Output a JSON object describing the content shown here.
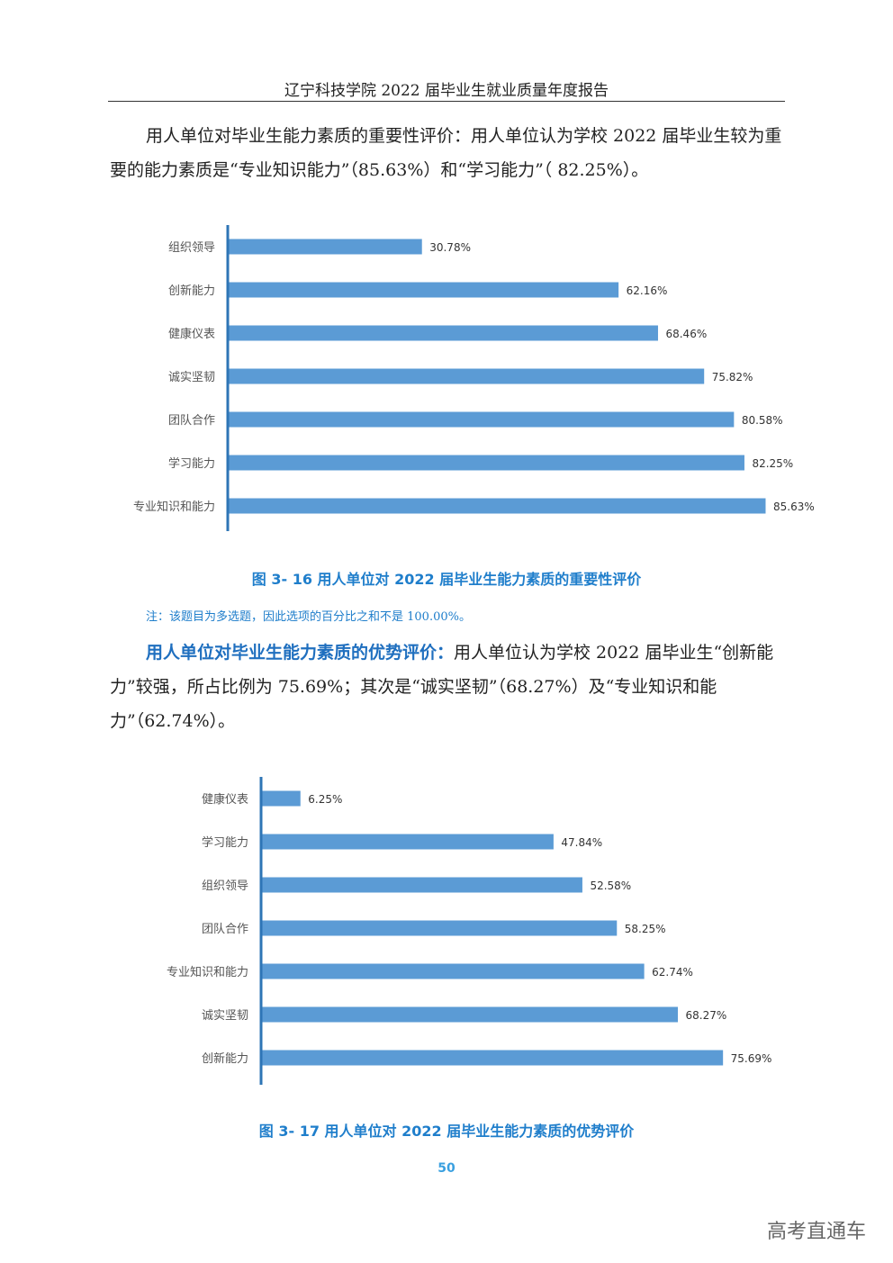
{
  "header": {
    "title": "辽宁科技学院 2022 届毕业生就业质量年度报告"
  },
  "para1": {
    "text": "用人单位对毕业生能力素质的重要性评价：用人单位认为学校 2022 届毕业生较为重要的能力素质是“专业知识能力”（85.63%）和“学习能力”（ 82.25%）。"
  },
  "fig1": {
    "caption": "图 3- 16 用人单位对 2022 届毕业生能力素质的重要性评价",
    "note": "注：该题目为多选题，因此选项的百分比之和不是 100.00%。"
  },
  "para2": {
    "lead": "用人单位对毕业生能力素质的优势评价：",
    "text": "用人单位认为学校 2022 届毕业生“创新能力”较强，所占比例为 75.69%；其次是“诚实坚韧”（68.27%）及“专业知识和能力”（62.74%）。"
  },
  "fig2": {
    "caption": "图 3- 17 用人单位对 2022 届毕业生能力素质的优势评价"
  },
  "page_number": "50",
  "watermark": "高考直通车",
  "colors": {
    "bar": "#5b9bd5",
    "axis": "#2e75b6",
    "caption": "#1f7ecb"
  },
  "chart_data": [
    {
      "type": "bar",
      "orientation": "horizontal",
      "categories": [
        "组织领导",
        "创新能力",
        "健康仪表",
        "诚实坚韧",
        "团队合作",
        "学习能力",
        "专业知识和能力"
      ],
      "values": [
        30.78,
        62.16,
        68.46,
        75.82,
        80.58,
        82.25,
        85.63
      ],
      "value_labels": [
        "30.78%",
        "62.16%",
        "68.46%",
        "75.82%",
        "80.58%",
        "82.25%",
        "85.63%"
      ],
      "xlim": [
        0,
        100
      ],
      "grid": false
    },
    {
      "type": "bar",
      "orientation": "horizontal",
      "categories": [
        "健康仪表",
        "学习能力",
        "组织领导",
        "团队合作",
        "专业知识和能力",
        "诚实坚韧",
        "创新能力"
      ],
      "values": [
        6.25,
        47.84,
        52.58,
        58.25,
        62.74,
        68.27,
        75.69
      ],
      "value_labels": [
        "6.25%",
        "47.84%",
        "52.58%",
        "58.25%",
        "62.74%",
        "68.27%",
        "75.69%"
      ],
      "xlim": [
        0,
        100
      ],
      "grid": false
    }
  ]
}
